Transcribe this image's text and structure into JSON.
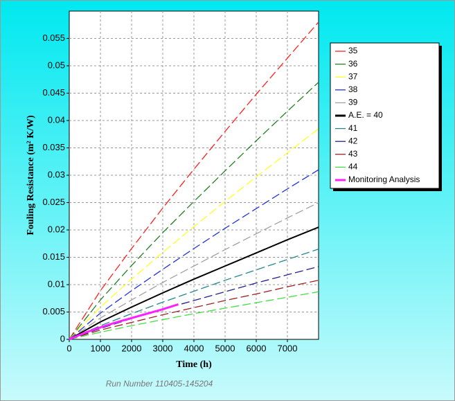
{
  "chart_data": {
    "type": "line",
    "x_label": "Time (h)",
    "y_label": "Fouling Resistance (m² K/W)",
    "footer": "Run Number 110405-145204",
    "x": [
      0,
      1000,
      2000,
      3000,
      4000,
      5000,
      6000,
      7000,
      8000
    ],
    "xlim": [
      0,
      8000
    ],
    "xticks": [
      0,
      1000,
      2000,
      3000,
      4000,
      5000,
      6000,
      7000
    ],
    "ylim": [
      0,
      0.06
    ],
    "yticks": [
      0,
      0.005,
      0.01,
      0.015,
      0.02,
      0.025,
      0.03,
      0.035,
      0.04,
      0.045,
      0.05,
      0.055
    ],
    "grid": true,
    "legend": "right",
    "series": [
      {
        "name": "35",
        "color": "#ff2020",
        "line_style": "dashed",
        "values": [
          0,
          0.0089,
          0.0166,
          0.024,
          0.0311,
          0.038,
          0.0448,
          0.0514,
          0.058
        ]
      },
      {
        "name": "36",
        "color": "#208020",
        "line_style": "dashed",
        "values": [
          0,
          0.0072,
          0.0135,
          0.0195,
          0.0252,
          0.0308,
          0.0363,
          0.0417,
          0.047
        ]
      },
      {
        "name": "37",
        "color": "#ffff20",
        "line_style": "dashed",
        "values": [
          0,
          0.0059,
          0.011,
          0.0159,
          0.0206,
          0.0252,
          0.0297,
          0.0341,
          0.0385
        ]
      },
      {
        "name": "38",
        "color": "#2030e0",
        "line_style": "dashed",
        "values": [
          0,
          0.0048,
          0.0089,
          0.0128,
          0.0166,
          0.0203,
          0.0239,
          0.0275,
          0.031
        ]
      },
      {
        "name": "39",
        "color": "#a0a0a0",
        "line_style": "dashed",
        "values": [
          0,
          0.0039,
          0.0072,
          0.0104,
          0.0134,
          0.0164,
          0.0193,
          0.0222,
          0.025
        ]
      },
      {
        "name": "A.E. = 40",
        "color": "#000000",
        "line_style": "solid",
        "values": [
          0,
          0.0032,
          0.0059,
          0.0085,
          0.011,
          0.0134,
          0.0158,
          0.0182,
          0.0205
        ]
      },
      {
        "name": "41",
        "color": "#208890",
        "line_style": "dashed",
        "values": [
          0,
          0.0025,
          0.0047,
          0.0068,
          0.0088,
          0.0108,
          0.0127,
          0.0146,
          0.0165
        ]
      },
      {
        "name": "42",
        "color": "#202090",
        "line_style": "dashed",
        "values": [
          0,
          0.002,
          0.0038,
          0.0055,
          0.0071,
          0.0087,
          0.0103,
          0.0118,
          0.0133
        ]
      },
      {
        "name": "43",
        "color": "#a02020",
        "line_style": "dashed",
        "values": [
          0,
          0.0017,
          0.0031,
          0.0045,
          0.0058,
          0.0071,
          0.0083,
          0.0096,
          0.0108
        ]
      },
      {
        "name": "44",
        "color": "#40e040",
        "line_style": "dashed",
        "values": [
          0,
          0.0013,
          0.0025,
          0.0036,
          0.0047,
          0.0057,
          0.0067,
          0.0077,
          0.0087
        ]
      },
      {
        "name": "Monitoring Analysis",
        "color": "#ff20ff",
        "line_style": "solid",
        "x": [
          0,
          500,
          1000,
          1500,
          2000,
          2500,
          3000,
          3500
        ],
        "values": [
          0,
          0.0012,
          0.0022,
          0.0031,
          0.0039,
          0.0047,
          0.0055,
          0.0064
        ]
      }
    ]
  }
}
